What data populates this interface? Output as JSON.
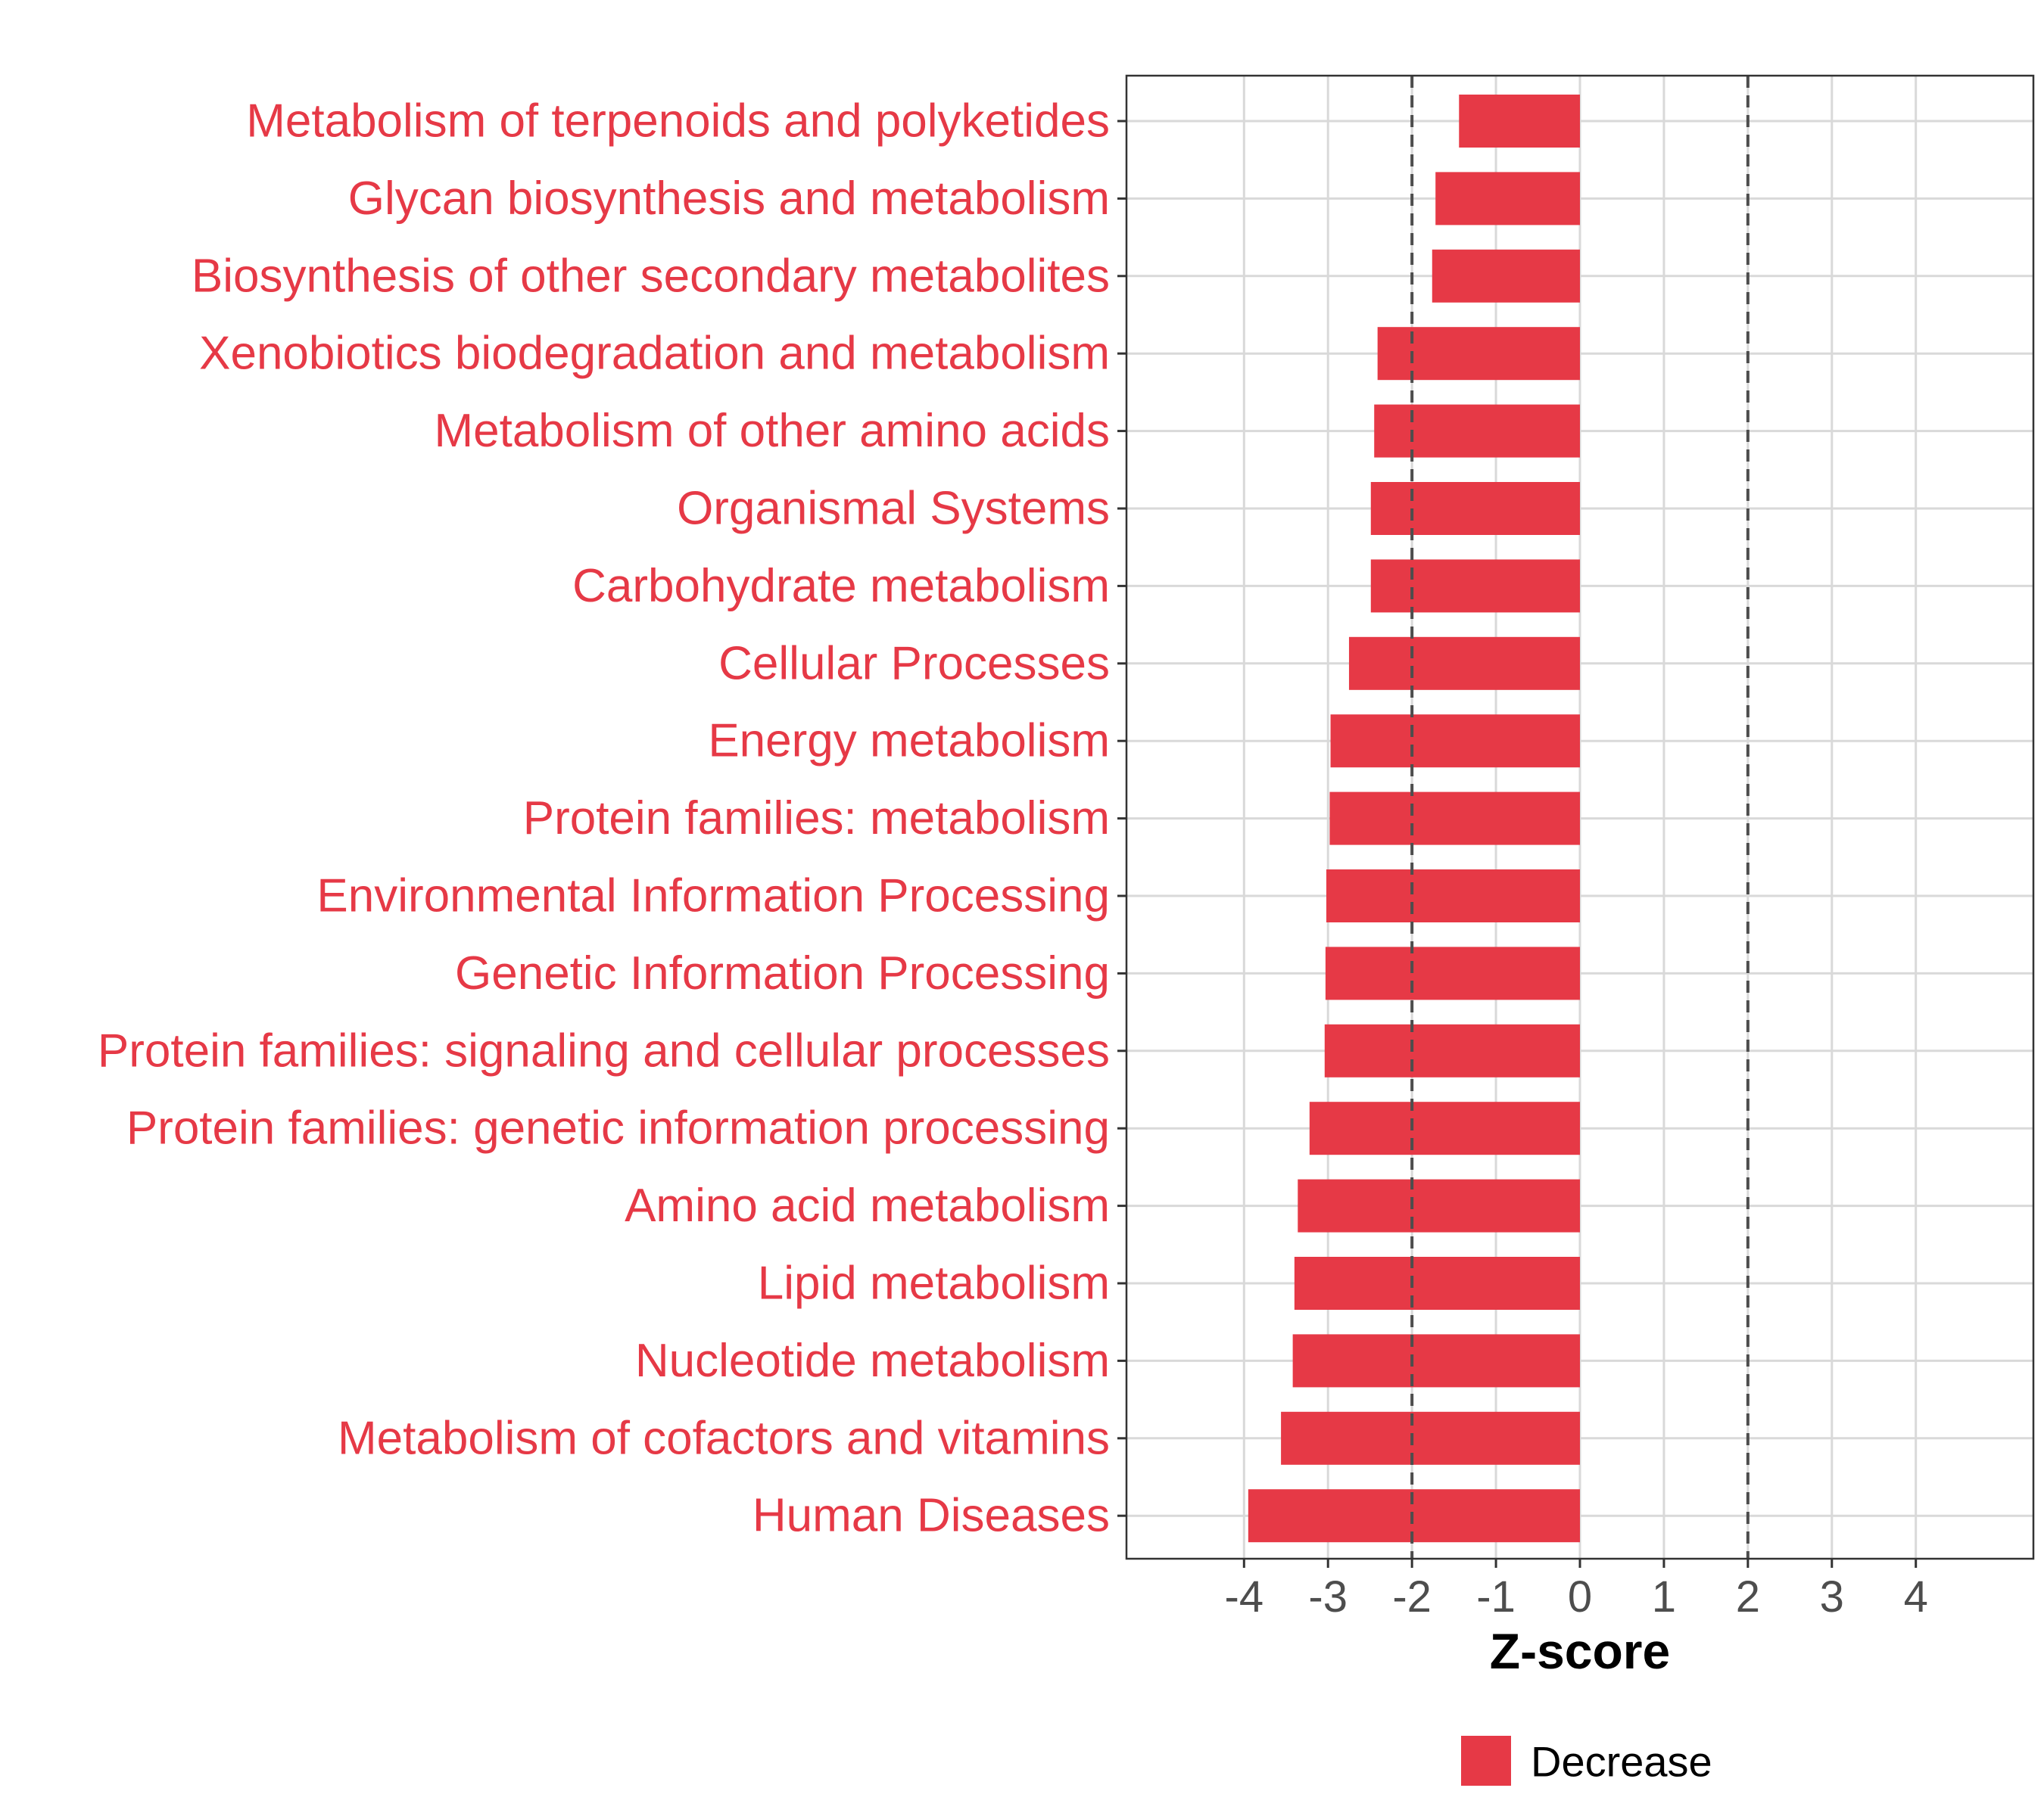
{
  "chart_data": {
    "type": "bar",
    "orientation": "horizontal",
    "categories": [
      "Metabolism of terpenoids and polyketides",
      "Glycan biosynthesis and metabolism",
      "Biosynthesis of other secondary metabolites",
      "Xenobiotics biodegradation and metabolism",
      "Metabolism of other amino acids",
      "Organismal Systems",
      "Carbohydrate metabolism",
      "Cellular Processes",
      "Energy metabolism",
      "Protein families: metabolism",
      "Environmental Information Processing",
      "Genetic Information Processing",
      "Protein families: signaling and cellular processes",
      "Protein families: genetic information processing",
      "Amino acid metabolism",
      "Lipid metabolism",
      "Nucleotide metabolism",
      "Metabolism of cofactors and vitamins",
      "Human Diseases"
    ],
    "series": [
      {
        "name": "Decrease",
        "values": [
          -1.44,
          -1.72,
          -1.76,
          -2.41,
          -2.45,
          -2.49,
          -2.49,
          -2.75,
          -2.97,
          -2.98,
          -3.02,
          -3.03,
          -3.04,
          -3.22,
          -3.36,
          -3.4,
          -3.42,
          -3.56,
          -3.95
        ]
      }
    ],
    "xlabel": "Z-score",
    "ylabel": "",
    "xlim": [
      -5.4,
      5.4
    ],
    "xticks": [
      "-4",
      "-3",
      "-2",
      "-1",
      "0",
      "1",
      "2",
      "3",
      "4"
    ],
    "reference_lines": [
      -2,
      2
    ],
    "grid": true,
    "legend_position": "bottom",
    "colors": {
      "bar": "#e63946",
      "category_label": "#e63946",
      "grid": "#d9d9d9",
      "reference_line": "#4d4d4d",
      "panel_border": "#333333",
      "tick_label": "#4d4d4d"
    }
  }
}
